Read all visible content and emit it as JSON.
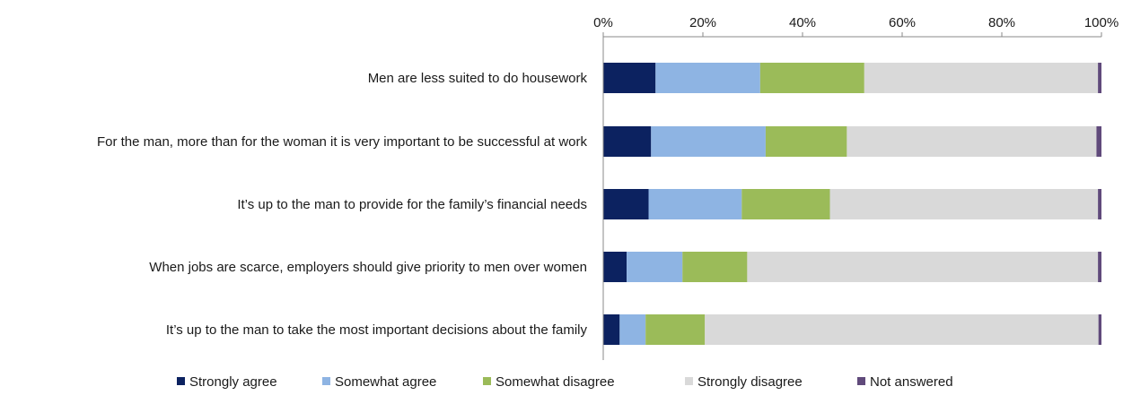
{
  "chart_data": {
    "type": "bar",
    "orientation": "horizontal",
    "stacked": true,
    "categories": [
      "Men are less suited to do housework",
      "For the man, more than for the woman it is very important to be successful at work",
      "It’s up to the man to provide for the family’s financial needs",
      "When jobs are scarce, employers should give priority to men over women",
      "It’s up to the man to take the most important decisions about the family"
    ],
    "series": [
      {
        "name": "Strongly agree",
        "color": "#0c2260",
        "values": [
          10.5,
          9.6,
          9.1,
          4.7,
          3.3
        ]
      },
      {
        "name": "Somewhat agree",
        "color": "#8eb4e3",
        "values": [
          21.0,
          23.0,
          18.7,
          11.2,
          5.2
        ]
      },
      {
        "name": "Somewhat disagree",
        "color": "#9bbb59",
        "values": [
          20.9,
          16.3,
          17.7,
          13.0,
          11.9
        ]
      },
      {
        "name": "Strongly disagree",
        "color": "#d9d9d9",
        "values": [
          46.9,
          50.1,
          53.8,
          70.4,
          79.0
        ]
      },
      {
        "name": "Not answered",
        "color": "#604a7b",
        "values": [
          0.7,
          1.0,
          0.7,
          0.7,
          0.6
        ]
      }
    ],
    "x_ticks": [
      "0%",
      "20%",
      "40%",
      "60%",
      "80%",
      "100%"
    ],
    "xlim": [
      0,
      100
    ],
    "xlabel": "",
    "ylabel": "",
    "title": "",
    "grid": false,
    "axis_position": "top",
    "legend_position": "bottom"
  }
}
